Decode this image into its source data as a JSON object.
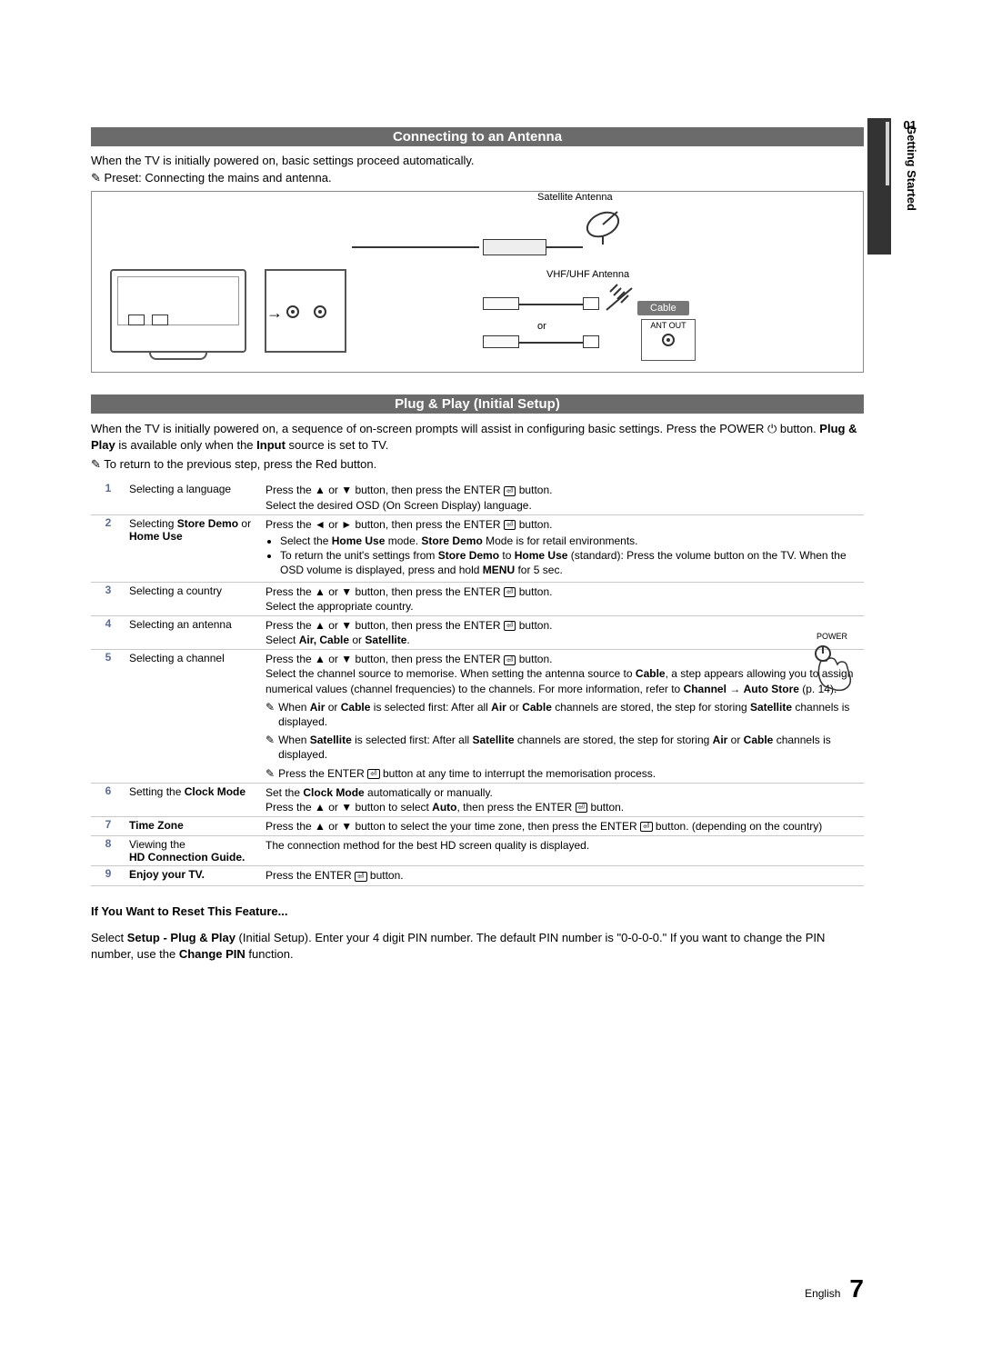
{
  "sidebar": {
    "number": "01",
    "label": "Getting Started"
  },
  "section1": {
    "heading": "Connecting to an Antenna",
    "intro": "When the TV is initially powered on, basic settings proceed automatically.",
    "preset_note": "Preset: Connecting the mains and antenna.",
    "labels": {
      "satellite": "Satellite Antenna",
      "vhf": "VHF/UHF Antenna",
      "cable": "Cable",
      "antout": "ANT OUT",
      "or": "or"
    }
  },
  "section2": {
    "heading": "Plug & Play (Initial Setup)",
    "intro_parts": {
      "a": "When the TV is initially powered on, a sequence of on-screen prompts will assist in configuring basic settings. Press the POWER ",
      "b": " button. ",
      "c": "Plug & Play",
      "d": " is available only when the ",
      "e": "Input",
      "f": " source is set to TV."
    },
    "return_note": "To return to the previous step, press the Red button.",
    "power_label": "POWER"
  },
  "steps": [
    {
      "n": "1",
      "title_html": "Selecting a language",
      "instr_html": "Press the ▲ or ▼ button, then press the ENTER {E} button.<br>Select the desired OSD (On Screen Display) language."
    },
    {
      "n": "2",
      "title_html": "Selecting <b>Store Demo</b> or <b>Home Use</b>",
      "instr_html": "Press the ◄ or ► button, then press the ENTER {E} button.<ul><li>Select the <b>Home Use</b> mode. <b>Store Demo</b> Mode is for retail environments.</li><li>To return the unit's settings from <b>Store Demo</b> to <b>Home Use</b> (standard): Press the volume button on the TV. When the OSD volume is displayed, press and hold <b>MENU</b> for 5 sec.</li></ul>"
    },
    {
      "n": "3",
      "title_html": "Selecting a country",
      "instr_html": "Press the ▲ or ▼ button, then press the ENTER {E} button.<br>Select the appropriate country."
    },
    {
      "n": "4",
      "title_html": "Selecting an antenna",
      "instr_html": "Press the ▲ or ▼ button, then press the ENTER {E} button.<br>Select <b>Air, Cable</b> or <b>Satellite</b>."
    },
    {
      "n": "5",
      "title_html": "Selecting a channel",
      "instr_html": "Press the ▲ or ▼ button, then press the ENTER {E} button.<br>Select the channel source to memorise. When setting the antenna source to <b>Cable</b>, a step appears allowing you to assign numerical values (channel frequencies) to the channels. For more information, refer to <b>Channel</b> → <b>Auto Store</b> (p. 14).<div class='subnote'><span class='note-icon'>✎</span><span>When <b>Air</b> or <b>Cable</b> is selected first: After all <b>Air</b> or <b>Cable</b> channels are stored, the step for storing <b>Satellite</b> channels is displayed.</span></div><div class='subnote'><span class='note-icon'>✎</span><span>When <b>Satellite</b> is selected first: After all <b>Satellite</b> channels are stored, the step for storing <b>Air</b> or <b>Cable</b> channels is displayed.</span></div><div class='subnote'><span class='note-icon'>✎</span><span>Press the ENTER {E} button at any time to interrupt the memorisation process.</span></div>"
    },
    {
      "n": "6",
      "title_html": "Setting the <b>Clock Mode</b>",
      "instr_html": "Set the <b>Clock Mode</b> automatically or manually.<br>Press the ▲ or ▼ button to select <b>Auto</b>, then press the ENTER {E} button."
    },
    {
      "n": "7",
      "title_html": "<b>Time Zone</b>",
      "instr_html": "Press the ▲ or ▼ button to select the your time zone, then press the ENTER {E} button. (depending on the country)"
    },
    {
      "n": "8",
      "title_html": "Viewing the<br><b>HD Connection Guide.</b>",
      "instr_html": "The connection method for the best HD screen quality is displayed."
    },
    {
      "n": "9",
      "title_html": "<b>Enjoy your TV.</b>",
      "instr_html": "Press the ENTER {E} button."
    }
  ],
  "reset": {
    "heading": "If You Want to Reset This Feature...",
    "body_html": "Select <b>Setup - Plug & Play</b> (Initial Setup). Enter your 4 digit PIN number. The default PIN number is \"0-0-0-0.\" If you want to change the PIN number, use the <b>Change PIN</b> function."
  },
  "footer": {
    "lang": "English",
    "page": "7"
  }
}
